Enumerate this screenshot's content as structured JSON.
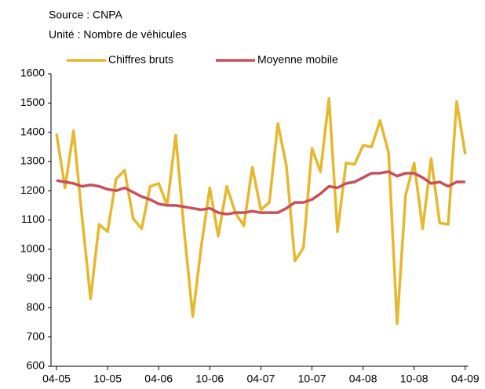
{
  "chart_data": {
    "type": "line",
    "source": "Source : CNPA",
    "unit": "Unité : Nombre de véhicules",
    "categories": [
      "04-05",
      null,
      null,
      null,
      null,
      null,
      "10-05",
      null,
      null,
      null,
      null,
      null,
      "04-06",
      null,
      null,
      null,
      null,
      null,
      "10-06",
      null,
      null,
      null,
      null,
      null,
      "04-07",
      null,
      null,
      null,
      null,
      null,
      "10-07",
      null,
      null,
      null,
      null,
      null,
      "04-08",
      null,
      null,
      null,
      null,
      null,
      "10-08",
      null,
      null,
      null,
      null,
      null,
      "04-09"
    ],
    "series": [
      {
        "name": "Chiffres bruts",
        "color": "#e6b82e",
        "values": [
          1395,
          1210,
          1405,
          1110,
          830,
          1085,
          1060,
          1240,
          1270,
          1105,
          1070,
          1215,
          1225,
          1150,
          1390,
          1060,
          770,
          1010,
          1210,
          1045,
          1215,
          1125,
          1080,
          1280,
          1135,
          1160,
          1430,
          1285,
          960,
          1005,
          1345,
          1265,
          1515,
          1060,
          1295,
          1290,
          1355,
          1350,
          1440,
          1330,
          745,
          1185,
          1295,
          1070,
          1310,
          1090,
          1085,
          1505,
          1325
        ]
      },
      {
        "name": "Moyenne mobile",
        "color": "#c8505a",
        "values": [
          1235,
          1230,
          1225,
          1215,
          1220,
          1215,
          1205,
          1200,
          1210,
          1195,
          1180,
          1170,
          1155,
          1150,
          1150,
          1145,
          1140,
          1135,
          1140,
          1125,
          1120,
          1125,
          1125,
          1130,
          1125,
          1125,
          1125,
          1140,
          1160,
          1160,
          1170,
          1190,
          1215,
          1210,
          1225,
          1230,
          1245,
          1260,
          1260,
          1265,
          1250,
          1260,
          1260,
          1245,
          1225,
          1230,
          1215,
          1230,
          1230
        ]
      }
    ],
    "ylim": [
      600,
      1600
    ],
    "yticks": [
      600,
      700,
      800,
      900,
      1000,
      1100,
      1200,
      1300,
      1400,
      1500,
      1600
    ]
  }
}
